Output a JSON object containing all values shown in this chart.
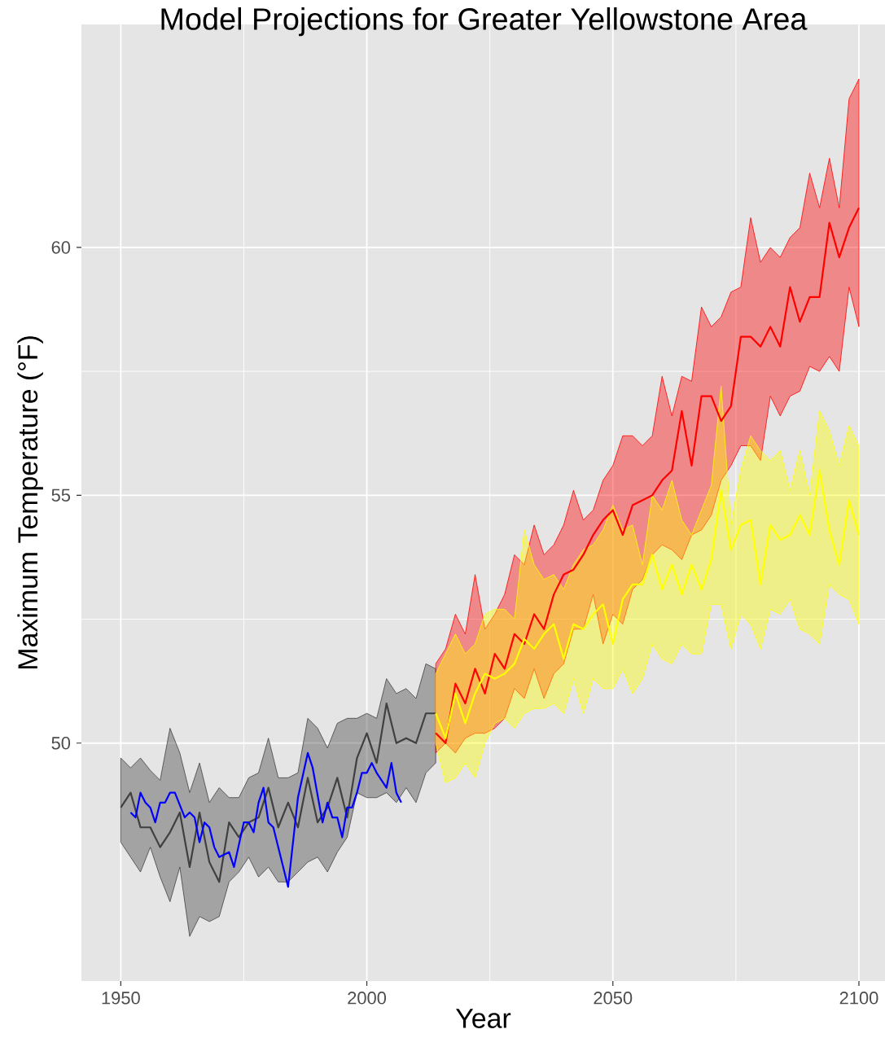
{
  "chart_data": {
    "type": "line",
    "title": "Model Projections for Greater Yellowstone Area",
    "xlabel": "Year",
    "ylabel": "Maximum Temperature (°F)",
    "xlim": [
      1942,
      2105.3
    ],
    "ylim": [
      45.2,
      64.5
    ],
    "xticks": [
      1950,
      2000,
      2050,
      2100
    ],
    "yticks": [
      50,
      55,
      60
    ],
    "grid": true,
    "series": [
      {
        "color": "#404040",
        "x": [
          1950,
          1952,
          1954,
          1956,
          1958,
          1960,
          1962,
          1964,
          1966,
          1968,
          1970,
          1972,
          1974,
          1976,
          1978,
          1980,
          1982,
          1984,
          1986,
          1988,
          1990,
          1992,
          1994,
          1996,
          1998,
          2000,
          2002,
          2004,
          2006,
          2008,
          2010,
          2012,
          2014
        ],
        "values": [
          48.7,
          49.0,
          48.3,
          48.3,
          47.9,
          48.2,
          48.6,
          47.5,
          48.6,
          47.6,
          47.2,
          48.4,
          48.1,
          48.4,
          48.5,
          49.1,
          48.3,
          48.8,
          48.3,
          49.3,
          48.4,
          48.7,
          49.3,
          48.5,
          49.7,
          50.2,
          49.6,
          50.8,
          50.0,
          50.1,
          50.0,
          50.6,
          50.6
        ],
        "lower": [
          48.0,
          47.7,
          47.4,
          47.9,
          47.3,
          46.8,
          47.5,
          46.1,
          46.5,
          46.4,
          46.5,
          47.2,
          47.4,
          47.7,
          47.3,
          47.5,
          47.2,
          47.2,
          47.4,
          47.6,
          47.7,
          47.4,
          47.8,
          48.1,
          49.0,
          48.9,
          48.9,
          49.0,
          48.8,
          49.1,
          48.8,
          49.4,
          49.6
        ],
        "upper": [
          49.7,
          49.5,
          49.7,
          49.45,
          49.25,
          50.3,
          49.8,
          49.0,
          49.6,
          48.8,
          49.1,
          48.9,
          48.9,
          49.3,
          49.4,
          50.1,
          49.3,
          49.3,
          49.4,
          50.5,
          50.3,
          49.9,
          50.4,
          50.5,
          50.5,
          50.6,
          50.5,
          51.3,
          51.0,
          51.1,
          50.9,
          51.6,
          51.5
        ]
      },
      {
        "color": "#0000ff",
        "x": [
          1952,
          1953,
          1954,
          1955,
          1956,
          1957,
          1958,
          1959,
          1960,
          1961,
          1963,
          1964,
          1965,
          1966,
          1967,
          1968,
          1969,
          1970,
          1972,
          1973,
          1975,
          1976,
          1977,
          1978,
          1979,
          1980,
          1981,
          1984,
          1986,
          1988,
          1989,
          1991,
          1992,
          1993,
          1994,
          1995,
          1996,
          1997,
          1998,
          1999,
          2000,
          2001,
          2002,
          2004,
          2005,
          2006,
          2007
        ],
        "values": [
          48.6,
          48.5,
          49.0,
          48.8,
          48.7,
          48.4,
          48.8,
          48.8,
          49.0,
          49.0,
          48.5,
          48.6,
          48.5,
          48.0,
          48.4,
          48.3,
          47.9,
          47.7,
          47.8,
          47.5,
          48.4,
          48.4,
          48.2,
          48.8,
          49.1,
          48.4,
          48.3,
          47.1,
          48.9,
          49.8,
          49.5,
          48.4,
          48.8,
          48.5,
          48.5,
          48.1,
          48.7,
          48.7,
          49.0,
          49.4,
          49.4,
          49.6,
          49.4,
          49.1,
          49.6,
          49.0,
          48.8
        ]
      },
      {
        "color": "#ff0000",
        "x": [
          2014,
          2016,
          2018,
          2020,
          2022,
          2024,
          2026,
          2028,
          2030,
          2032,
          2034,
          2036,
          2038,
          2040,
          2042,
          2044,
          2046,
          2048,
          2050,
          2052,
          2054,
          2056,
          2058,
          2060,
          2062,
          2064,
          2066,
          2068,
          2070,
          2072,
          2074,
          2076,
          2078,
          2080,
          2082,
          2084,
          2086,
          2088,
          2090,
          2092,
          2094,
          2096,
          2098,
          2100
        ],
        "values": [
          50.2,
          50.0,
          51.2,
          50.8,
          51.5,
          51.0,
          51.8,
          51.5,
          52.2,
          52.0,
          52.6,
          52.3,
          53.0,
          53.4,
          53.5,
          53.8,
          54.2,
          54.5,
          54.7,
          54.2,
          54.8,
          54.9,
          55.0,
          55.3,
          55.5,
          56.7,
          55.6,
          57.0,
          57.0,
          56.5,
          56.8,
          58.2,
          58.2,
          58.0,
          58.4,
          58.0,
          59.2,
          58.5,
          59.0,
          59.0,
          60.5,
          59.8,
          60.4,
          60.8
        ],
        "lower": [
          49.8,
          50.0,
          49.8,
          50.1,
          50.2,
          50.2,
          50.3,
          50.5,
          51.1,
          50.9,
          51.5,
          50.9,
          51.4,
          51.6,
          52.3,
          52.3,
          53.0,
          52.0,
          52.6,
          52.4,
          53.1,
          53.3,
          53.8,
          54.0,
          53.9,
          53.7,
          54.2,
          54.3,
          54.6,
          55.3,
          55.6,
          56.0,
          56.0,
          55.7,
          57.0,
          56.6,
          57.0,
          57.1,
          57.6,
          57.5,
          57.8,
          57.5,
          59.2,
          58.4
        ],
        "upper": [
          51.6,
          51.9,
          52.6,
          52.2,
          53.4,
          52.3,
          52.6,
          53.0,
          53.8,
          53.6,
          54.4,
          53.8,
          54.0,
          54.4,
          55.1,
          54.5,
          54.7,
          55.3,
          55.6,
          56.2,
          56.2,
          56.0,
          56.2,
          57.4,
          56.6,
          57.4,
          57.3,
          58.8,
          58.4,
          58.6,
          59.1,
          59.2,
          60.6,
          59.7,
          60.0,
          59.8,
          60.2,
          60.4,
          61.5,
          60.8,
          61.8,
          60.8,
          63.0,
          63.4
        ]
      },
      {
        "color": "#ffff00",
        "x": [
          2014,
          2016,
          2018,
          2020,
          2022,
          2024,
          2026,
          2028,
          2030,
          2032,
          2034,
          2036,
          2038,
          2040,
          2042,
          2044,
          2046,
          2048,
          2050,
          2052,
          2054,
          2056,
          2058,
          2060,
          2062,
          2064,
          2066,
          2068,
          2070,
          2072,
          2074,
          2076,
          2078,
          2080,
          2082,
          2084,
          2086,
          2088,
          2090,
          2092,
          2094,
          2096,
          2098,
          2100
        ],
        "values": [
          50.6,
          50.1,
          51.0,
          50.4,
          51.0,
          51.4,
          51.3,
          51.4,
          51.6,
          52.1,
          51.9,
          52.2,
          52.4,
          51.7,
          52.4,
          52.3,
          52.6,
          52.8,
          52.0,
          52.9,
          53.2,
          53.2,
          53.8,
          53.1,
          53.6,
          53.0,
          53.6,
          53.1,
          53.7,
          55.1,
          53.9,
          54.4,
          54.5,
          53.2,
          54.4,
          54.1,
          54.2,
          54.6,
          54.2,
          55.5,
          54.3,
          53.6,
          54.9,
          54.2
        ],
        "lower": [
          50.0,
          49.2,
          49.3,
          49.6,
          49.3,
          50.0,
          50.4,
          50.5,
          50.3,
          50.6,
          50.7,
          50.7,
          50.8,
          50.6,
          51.3,
          50.6,
          51.3,
          51.1,
          51.1,
          51.5,
          51.0,
          51.3,
          52.0,
          51.7,
          51.6,
          52.0,
          51.8,
          51.8,
          52.8,
          52.8,
          51.9,
          52.6,
          52.4,
          51.9,
          52.7,
          52.6,
          52.9,
          52.3,
          52.2,
          52.0,
          53.2,
          53.0,
          52.9,
          52.4
        ],
        "upper": [
          51.4,
          51.8,
          52.2,
          51.8,
          52.0,
          52.6,
          52.7,
          52.7,
          52.5,
          54.3,
          53.6,
          53.3,
          53.4,
          53.1,
          53.6,
          53.9,
          54.0,
          54.3,
          54.8,
          54.3,
          54.4,
          53.6,
          55.0,
          54.7,
          55.3,
          54.5,
          54.2,
          54.7,
          55.2,
          57.2,
          54.4,
          55.5,
          56.2,
          55.9,
          55.7,
          55.9,
          55.1,
          55.9,
          55.0,
          56.7,
          56.3,
          55.6,
          56.4,
          56.0
        ]
      }
    ]
  }
}
